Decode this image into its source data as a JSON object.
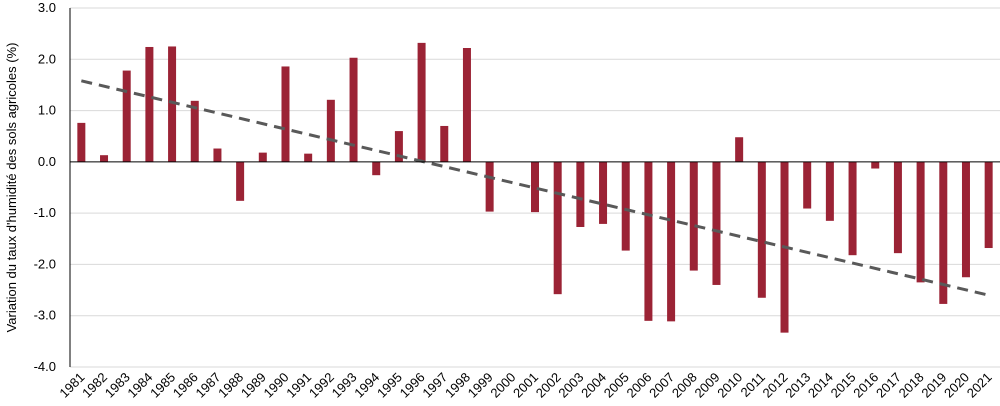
{
  "chart_data": {
    "type": "bar",
    "title": "",
    "xlabel": "",
    "ylabel": "Variation du taux d'humidité des sols agricoles (%)",
    "ylim": [
      -4.0,
      3.0
    ],
    "yticks": [
      "3.0",
      "2.0",
      "1.0",
      "0.0",
      "-1.0",
      "-2.0",
      "-3.0",
      "-4.0"
    ],
    "ytick_values": [
      3,
      2,
      1,
      0,
      -1,
      -2,
      -3,
      -4
    ],
    "grid": true,
    "bar_color": "#9b2335",
    "trend_color": "#595959",
    "categories": [
      "1981",
      "1982",
      "1983",
      "1984",
      "1985",
      "1986",
      "1987",
      "1988",
      "1989",
      "1990",
      "1991",
      "1992",
      "1993",
      "1994",
      "1995",
      "1996",
      "1997",
      "1998",
      "1999",
      "2000",
      "2001",
      "2002",
      "2003",
      "2004",
      "2005",
      "2006",
      "2007",
      "2008",
      "2009",
      "2010",
      "2011",
      "2012",
      "2013",
      "2014",
      "2015",
      "2016",
      "2017",
      "2018",
      "2019",
      "2020",
      "2021"
    ],
    "values": [
      0.76,
      0.13,
      1.78,
      2.24,
      2.25,
      1.19,
      0.26,
      -0.76,
      0.18,
      1.86,
      0.16,
      1.21,
      2.03,
      -0.26,
      0.6,
      2.32,
      0.7,
      2.22,
      -0.97,
      0.0,
      -0.98,
      -2.58,
      -1.27,
      -1.21,
      -1.73,
      -3.1,
      -3.11,
      -2.12,
      -2.4,
      0.48,
      -2.65,
      -3.33,
      -0.91,
      -1.15,
      -1.82,
      -0.13,
      -1.78,
      -2.35,
      -2.77,
      -2.25,
      -1.68
    ],
    "trendline": {
      "style": "dashed",
      "start": 1.58,
      "end": -2.6
    }
  }
}
